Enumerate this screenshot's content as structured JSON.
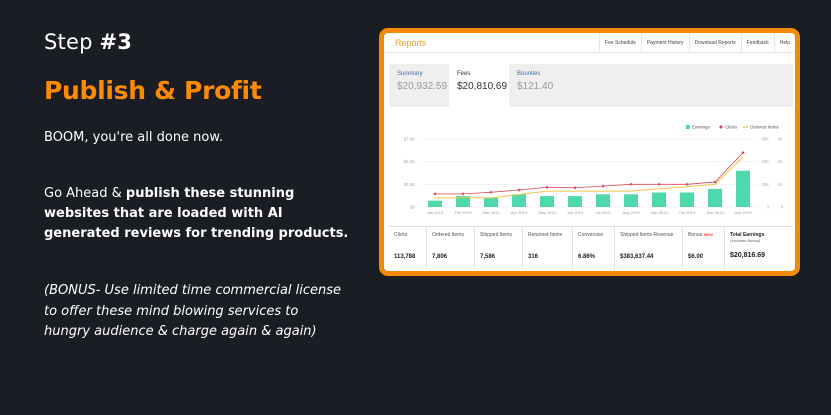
{
  "intro": {
    "step_prefix": "Step ",
    "step_num": "#3",
    "headline": "Publish & Profit",
    "done_text": "BOOM, you're all done now.",
    "p2_plain": "Go Ahead & ",
    "p2_bold": "publish these stunning websites that are loaded with AI generated reviews for trending products.",
    "bonus": "(BONUS- Use limited time commercial license to offer these mind blowing services to hungry audience & charge again & again)"
  },
  "report": {
    "title": "Reports",
    "links": [
      "Fee Schedule",
      "Payment History",
      "Download Reports",
      "Feedback",
      "Help"
    ],
    "tabs": [
      {
        "label": "Summary",
        "value": "$20,932.59"
      },
      {
        "label": "Fees",
        "value": "$20,810.69"
      },
      {
        "label": "Bounties",
        "value": "$121.40"
      }
    ],
    "stats": [
      {
        "label": "Clicks",
        "value": "113,788"
      },
      {
        "label": "Ordered Items",
        "value": "7,806"
      },
      {
        "label": "Shipped Items",
        "value": "7,586"
      },
      {
        "label": "Returned Items",
        "value": "316"
      },
      {
        "label": "Conversion",
        "value": "6.86%"
      },
      {
        "label": "Shipped Items Revenue",
        "value": "$383,637.44"
      },
      {
        "label": "Bonus",
        "badge": "NEW",
        "value": "$6.00"
      },
      {
        "label": "Total Earnings",
        "sub": "(Includes Bonus)",
        "value": "$20,816.69"
      }
    ]
  },
  "colors": {
    "accent": "#ff8a00",
    "frame": "#f58a07",
    "bg": "#1b1d24",
    "earnings": "#4fd8ae",
    "clicks": "#d9475a",
    "ordered": "#f0c44a"
  },
  "chart_data": {
    "type": "bar",
    "categories": [
      "Jan 2019",
      "Feb 2019",
      "Mar 2019",
      "Apr 2019",
      "May 2019",
      "Jun 2019",
      "Jul 2019",
      "Aug 2019",
      "Sep 2019",
      "Oct 2019",
      "Nov 2019",
      "Dec 2019"
    ],
    "legend": [
      "Earnings",
      "Clicks",
      "Ordered Items"
    ],
    "y_left_ticks": [
      "$7.5K",
      "$5.0K",
      "$2.5K",
      "$0"
    ],
    "y_right_ticks_1": [
      "30K",
      "20K",
      "10K",
      "0"
    ],
    "y_right_ticks_2": [
      "3K",
      "2K",
      "1K",
      "0"
    ],
    "ylim": [
      0,
      7500
    ],
    "series": [
      {
        "name": "Earnings",
        "values": [
          700,
          1200,
          1000,
          1400,
          1200,
          1200,
          1400,
          1400,
          1600,
          1600,
          2000,
          4000
        ]
      },
      {
        "name": "Clicks",
        "values": [
          5800,
          5800,
          6500,
          7500,
          8700,
          8500,
          9200,
          10000,
          10000,
          10000,
          11000,
          24000
        ]
      },
      {
        "name": "Ordered Items",
        "values": [
          400,
          400,
          400,
          550,
          700,
          700,
          700,
          700,
          800,
          900,
          1000,
          2200
        ]
      }
    ]
  }
}
